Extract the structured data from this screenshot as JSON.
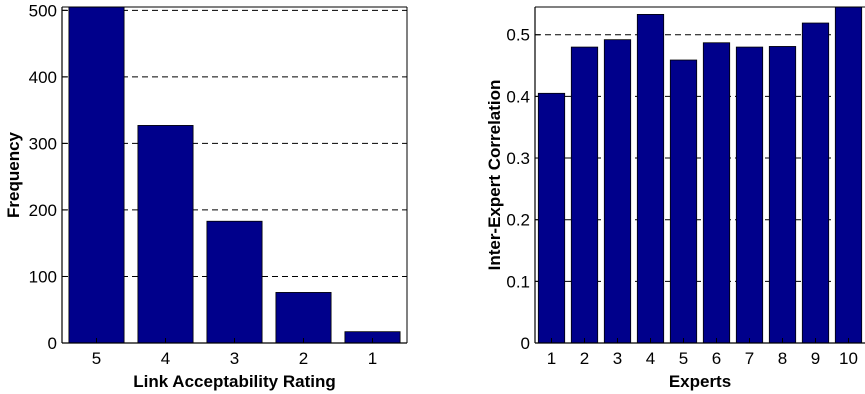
{
  "colors": {
    "bar": "#00008B",
    "grid": "#000000",
    "axis": "#000000"
  },
  "chart_data": [
    {
      "type": "bar",
      "categories": [
        "5",
        "4",
        "3",
        "2",
        "1"
      ],
      "values": [
        505,
        327,
        183,
        76,
        17
      ],
      "xlabel": "Link Acceptability Rating",
      "ylabel": "Frequency",
      "ylim": [
        0,
        505
      ],
      "yticks": [
        "0",
        "100",
        "200",
        "300",
        "400",
        "500"
      ],
      "grid": "y-dashed"
    },
    {
      "type": "bar",
      "categories": [
        "1",
        "2",
        "3",
        "4",
        "5",
        "6",
        "7",
        "8",
        "9",
        "10"
      ],
      "values": [
        0.405,
        0.48,
        0.492,
        0.533,
        0.459,
        0.487,
        0.48,
        0.481,
        0.519,
        0.545
      ],
      "xlabel": "Experts",
      "ylabel": "Inter-Expert Correlation",
      "ylim": [
        0,
        0.545
      ],
      "yticks": [
        "0",
        "0.1",
        "0.2",
        "0.3",
        "0.4",
        "0.5"
      ],
      "grid": "y-dashed"
    }
  ]
}
